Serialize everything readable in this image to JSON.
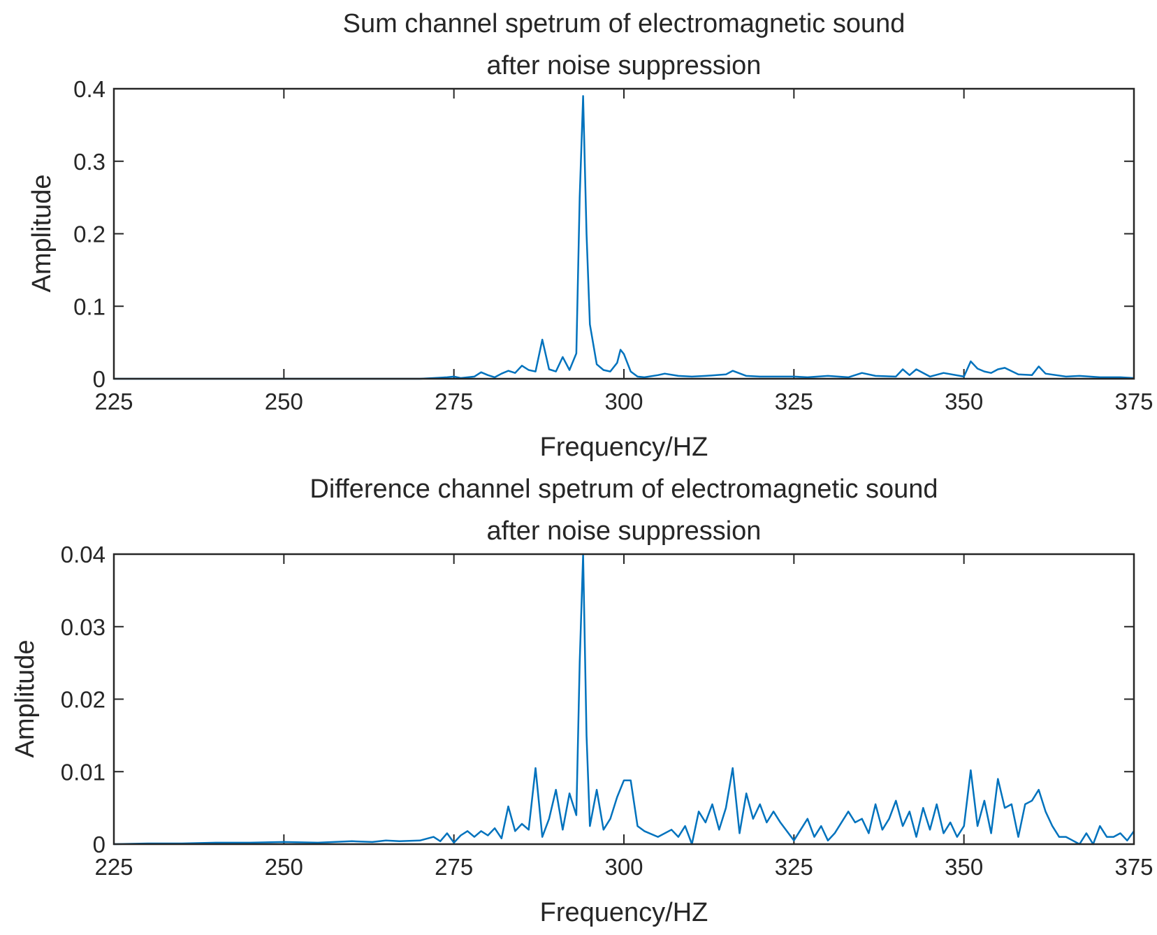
{
  "colors": {
    "series": "#0072BD",
    "axis": "#262626",
    "background": "#ffffff"
  },
  "chart_data": [
    {
      "type": "line",
      "title": [
        "Sum channel spetrum of electromagnetic sound",
        "after noise suppression"
      ],
      "xlabel": "Frequency/HZ",
      "ylabel": "Amplitude",
      "xlim": [
        225,
        375
      ],
      "ylim": [
        0,
        0.4
      ],
      "xticks": [
        225,
        250,
        275,
        300,
        325,
        350,
        375
      ],
      "xtick_labels": [
        "225",
        "250",
        "275",
        "300",
        "325",
        "350",
        "375"
      ],
      "yticks": [
        0,
        0.1,
        0.2,
        0.3,
        0.4
      ],
      "ytick_labels": [
        "0",
        "0.1",
        "0.2",
        "0.3",
        "0.4"
      ],
      "grid": false,
      "series": [
        {
          "x": [
            225,
            240,
            250,
            260,
            270,
            272,
            274,
            275,
            276,
            278,
            279,
            280,
            281,
            282,
            283,
            284,
            285,
            286,
            287,
            288,
            289,
            290,
            291,
            292,
            293,
            293.5,
            294,
            294.5,
            295,
            296,
            297,
            298,
            299,
            299.5,
            300,
            301,
            302,
            303,
            305,
            306,
            308,
            310,
            312,
            315,
            316,
            318,
            320,
            322,
            325,
            327,
            330,
            333,
            335,
            337,
            340,
            341,
            342,
            343,
            345,
            347,
            350,
            351,
            352,
            353,
            354,
            355,
            356,
            358,
            360,
            361,
            362,
            365,
            367,
            370,
            373,
            375
          ],
          "y": [
            0,
            0,
            0,
            0,
            0,
            0.001,
            0.002,
            0.003,
            0.001,
            0.003,
            0.009,
            0.005,
            0.002,
            0.007,
            0.011,
            0.008,
            0.018,
            0.012,
            0.01,
            0.054,
            0.013,
            0.01,
            0.03,
            0.012,
            0.035,
            0.25,
            0.39,
            0.2,
            0.075,
            0.02,
            0.012,
            0.01,
            0.022,
            0.04,
            0.034,
            0.01,
            0.003,
            0.002,
            0.005,
            0.007,
            0.004,
            0.003,
            0.004,
            0.006,
            0.011,
            0.004,
            0.003,
            0.003,
            0.003,
            0.002,
            0.004,
            0.002,
            0.008,
            0.004,
            0.003,
            0.013,
            0.005,
            0.013,
            0.003,
            0.008,
            0.003,
            0.024,
            0.014,
            0.01,
            0.008,
            0.013,
            0.015,
            0.006,
            0.005,
            0.017,
            0.007,
            0.003,
            0.004,
            0.002,
            0.002,
            0.001
          ]
        }
      ]
    },
    {
      "type": "line",
      "title": [
        "Difference channel spetrum of electromagnetic sound",
        "after noise suppression"
      ],
      "xlabel": "Frequency/HZ",
      "ylabel": "Amplitude",
      "xlim": [
        225,
        375
      ],
      "ylim": [
        0,
        0.04
      ],
      "xticks": [
        225,
        250,
        275,
        300,
        325,
        350,
        375
      ],
      "xtick_labels": [
        "225",
        "250",
        "275",
        "300",
        "325",
        "350",
        "375"
      ],
      "yticks": [
        0,
        0.01,
        0.02,
        0.03,
        0.04
      ],
      "ytick_labels": [
        "0",
        "0.01",
        "0.02",
        "0.03",
        "0.04"
      ],
      "grid": false,
      "series": [
        {
          "x": [
            225,
            230,
            235,
            240,
            245,
            250,
            255,
            260,
            263,
            265,
            267,
            270,
            272,
            273,
            274,
            275,
            276,
            277,
            278,
            279,
            280,
            281,
            282,
            283,
            284,
            285,
            286,
            287,
            288,
            289,
            290,
            291,
            292,
            293,
            293.5,
            294,
            294.5,
            295,
            296,
            297,
            298,
            299,
            300,
            301,
            302,
            303,
            305,
            307,
            308,
            309,
            310,
            311,
            312,
            313,
            314,
            315,
            316,
            317,
            318,
            319,
            320,
            321,
            322,
            323,
            325,
            327,
            328,
            329,
            330,
            331,
            333,
            334,
            335,
            336,
            337,
            338,
            339,
            340,
            341,
            342,
            343,
            344,
            345,
            346,
            347,
            348,
            349,
            350,
            351,
            352,
            353,
            354,
            355,
            356,
            357,
            358,
            359,
            360,
            361,
            362,
            363,
            364,
            365,
            366,
            367,
            368,
            369,
            370,
            371,
            372,
            373,
            374,
            375
          ],
          "y": [
            0,
            0.0001,
            0.0001,
            0.0002,
            0.0002,
            0.0003,
            0.0002,
            0.0004,
            0.0003,
            0.0005,
            0.0004,
            0.0005,
            0.001,
            0.0004,
            0.0015,
            0.0002,
            0.0012,
            0.0018,
            0.001,
            0.0018,
            0.0012,
            0.0022,
            0.0008,
            0.0052,
            0.0018,
            0.0028,
            0.002,
            0.0105,
            0.001,
            0.0035,
            0.0075,
            0.002,
            0.007,
            0.004,
            0.025,
            0.04,
            0.015,
            0.0025,
            0.0075,
            0.002,
            0.0035,
            0.0065,
            0.0088,
            0.0088,
            0.0025,
            0.0018,
            0.001,
            0.002,
            0.001,
            0.0025,
            0,
            0.0045,
            0.003,
            0.0055,
            0.002,
            0.005,
            0.0105,
            0.0015,
            0.007,
            0.0035,
            0.0055,
            0.003,
            0.0045,
            0.003,
            0.0005,
            0.0035,
            0.001,
            0.0025,
            0.0005,
            0.0015,
            0.0045,
            0.003,
            0.0035,
            0.0015,
            0.0055,
            0.002,
            0.0035,
            0.006,
            0.0025,
            0.0045,
            0.001,
            0.005,
            0.002,
            0.0055,
            0.0015,
            0.003,
            0.001,
            0.0025,
            0.0102,
            0.0025,
            0.006,
            0.0015,
            0.009,
            0.005,
            0.0055,
            0.001,
            0.0055,
            0.006,
            0.0075,
            0.0045,
            0.0025,
            0.001,
            0.001,
            0.0005,
            0,
            0.0015,
            0,
            0.0025,
            0.001,
            0.001,
            0.0015,
            0.0005,
            0.0018
          ]
        }
      ]
    }
  ]
}
